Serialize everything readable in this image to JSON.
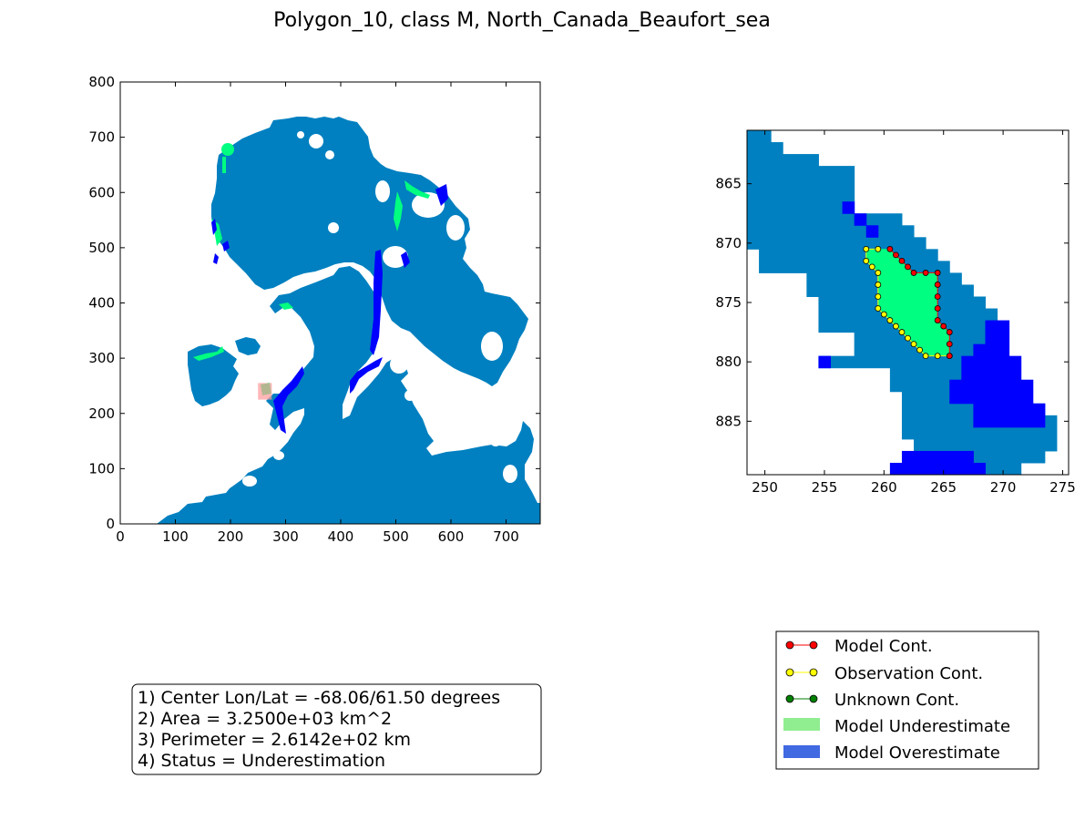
{
  "title": "Polygon_10, class M, North_Canada_Beaufort_sea",
  "colors": {
    "ocean": "#0080c0",
    "model_underestimate_cell": "#00ff80",
    "model_overestimate_cell": "#0000ff",
    "marker_box": "#ff9999",
    "model_cont": "#ff0000",
    "observation_cont": "#ffff00",
    "unknown_cont": "#008000",
    "legend_underestimate": "#90ee90",
    "legend_overestimate": "#4169e1"
  },
  "chart_data": [
    {
      "type": "heatmap",
      "panel": "overview",
      "xlim": [
        0,
        762
      ],
      "ylim": [
        0,
        800
      ],
      "xticks": [
        0,
        100,
        200,
        300,
        400,
        500,
        600,
        700
      ],
      "yticks": [
        0,
        100,
        200,
        300,
        400,
        500,
        600,
        700,
        800
      ],
      "selection_box": {
        "x": [
          250,
          275
        ],
        "y": [
          225,
          255
        ]
      }
    },
    {
      "type": "heatmap",
      "panel": "zoom",
      "xlim": [
        248.5,
        275.5
      ],
      "ylim": [
        889.5,
        860.5
      ],
      "xticks": [
        250,
        255,
        260,
        265,
        270,
        275
      ],
      "yticks": [
        865,
        870,
        875,
        880,
        885
      ],
      "cells": {
        "ocean": [
          [
            248.5,
            860.5,
            250.5,
            861.5
          ],
          [
            248.5,
            861.5,
            251.5,
            862.5
          ],
          [
            248.5,
            862.5,
            254.5,
            863.5
          ],
          [
            248.5,
            863.5,
            257.5,
            867.5
          ],
          [
            248.5,
            867.5,
            261.5,
            868.5
          ],
          [
            248.5,
            868.5,
            262.5,
            869.5
          ],
          [
            248.5,
            869.5,
            263.5,
            870.5
          ],
          [
            249.5,
            870.5,
            264.5,
            871.5
          ],
          [
            249.5,
            871.5,
            265.5,
            872.5
          ],
          [
            253.5,
            872.5,
            266.5,
            873.5
          ],
          [
            253.5,
            873.5,
            267.5,
            874.5
          ],
          [
            254.5,
            874.5,
            268.5,
            875.5
          ],
          [
            254.5,
            875.5,
            269.5,
            876.5
          ],
          [
            254.5,
            876.5,
            269.5,
            877.5
          ],
          [
            257.5,
            877.5,
            269.5,
            878.5
          ],
          [
            257.5,
            878.5,
            268.5,
            879.5
          ],
          [
            254.5,
            879.5,
            268.5,
            880.5
          ],
          [
            260.5,
            880.5,
            267.5,
            881.5
          ],
          [
            260.5,
            881.5,
            267.5,
            882.5
          ],
          [
            261.5,
            882.5,
            270.5,
            883.5
          ],
          [
            261.5,
            883.5,
            273.5,
            884.5
          ],
          [
            261.5,
            884.5,
            274.5,
            885.5
          ],
          [
            261.5,
            885.5,
            274.5,
            886.5
          ],
          [
            262.5,
            886.5,
            274.5,
            887.5
          ],
          [
            267.5,
            887.5,
            273.5,
            888.5
          ],
          [
            268.5,
            888.5,
            271.5,
            889.5
          ]
        ],
        "model_overestimate": [
          [
            256.5,
            866.5,
            257.5,
            867.5
          ],
          [
            257.5,
            867.5,
            258.5,
            868.5
          ],
          [
            258.5,
            868.5,
            259.5,
            869.5
          ],
          [
            268.5,
            876.5,
            270.5,
            877.5
          ],
          [
            268.5,
            877.5,
            270.5,
            878.5
          ],
          [
            267.5,
            878.5,
            270.5,
            879.5
          ],
          [
            254.5,
            879.5,
            255.5,
            880.5
          ],
          [
            266.5,
            879.5,
            271.5,
            880.5
          ],
          [
            266.5,
            880.5,
            271.5,
            881.5
          ],
          [
            265.5,
            881.5,
            272.5,
            882.5
          ],
          [
            265.5,
            882.5,
            272.5,
            883.5
          ],
          [
            267.5,
            883.5,
            273.5,
            884.5
          ],
          [
            267.5,
            884.5,
            273.5,
            885.5
          ],
          [
            261.5,
            887.5,
            267.5,
            888.5
          ],
          [
            260.5,
            888.5,
            268.5,
            889.5
          ]
        ]
      },
      "model_contour": [
        [
          260.5,
          870.5
        ],
        [
          261.0,
          871.0
        ],
        [
          261.5,
          871.5
        ],
        [
          262.0,
          872.0
        ],
        [
          262.5,
          872.5
        ],
        [
          263.5,
          872.5
        ],
        [
          264.5,
          872.5
        ],
        [
          264.5,
          873.5
        ],
        [
          264.5,
          874.5
        ],
        [
          264.5,
          875.5
        ],
        [
          264.5,
          876.5
        ],
        [
          265.0,
          877.0
        ],
        [
          265.5,
          877.5
        ],
        [
          265.5,
          878.5
        ],
        [
          265.5,
          879.5
        ]
      ],
      "observation_contour": [
        [
          259.5,
          870.5
        ],
        [
          258.5,
          870.5
        ],
        [
          258.5,
          871.5
        ],
        [
          259.0,
          872.0
        ],
        [
          259.5,
          872.5
        ],
        [
          259.5,
          873.5
        ],
        [
          259.5,
          874.5
        ],
        [
          259.5,
          875.5
        ],
        [
          260.0,
          876.0
        ],
        [
          260.5,
          876.5
        ],
        [
          261.0,
          877.0
        ],
        [
          261.5,
          877.5
        ],
        [
          262.0,
          878.0
        ],
        [
          262.5,
          878.5
        ],
        [
          263.0,
          879.0
        ],
        [
          263.5,
          879.5
        ],
        [
          264.5,
          879.5
        ],
        [
          265.5,
          879.5
        ]
      ]
    }
  ],
  "legend": [
    {
      "label": "Model Cont.",
      "kind": "line",
      "color": "#ff0000"
    },
    {
      "label": "Observation Cont.",
      "kind": "line",
      "color": "#ffff00"
    },
    {
      "label": "Unknown Cont.",
      "kind": "line",
      "color": "#008000"
    },
    {
      "label": "Model Underestimate",
      "kind": "patch",
      "color": "#90ee90"
    },
    {
      "label": "Model Overestimate",
      "kind": "patch",
      "color": "#4169e1"
    }
  ],
  "info": [
    "1) Center Lon/Lat = -68.06/61.50 degrees",
    "2) Area = 3.2500e+03 km^2",
    "3) Perimeter = 2.6142e+02 km",
    "4) Status = Underestimation"
  ]
}
